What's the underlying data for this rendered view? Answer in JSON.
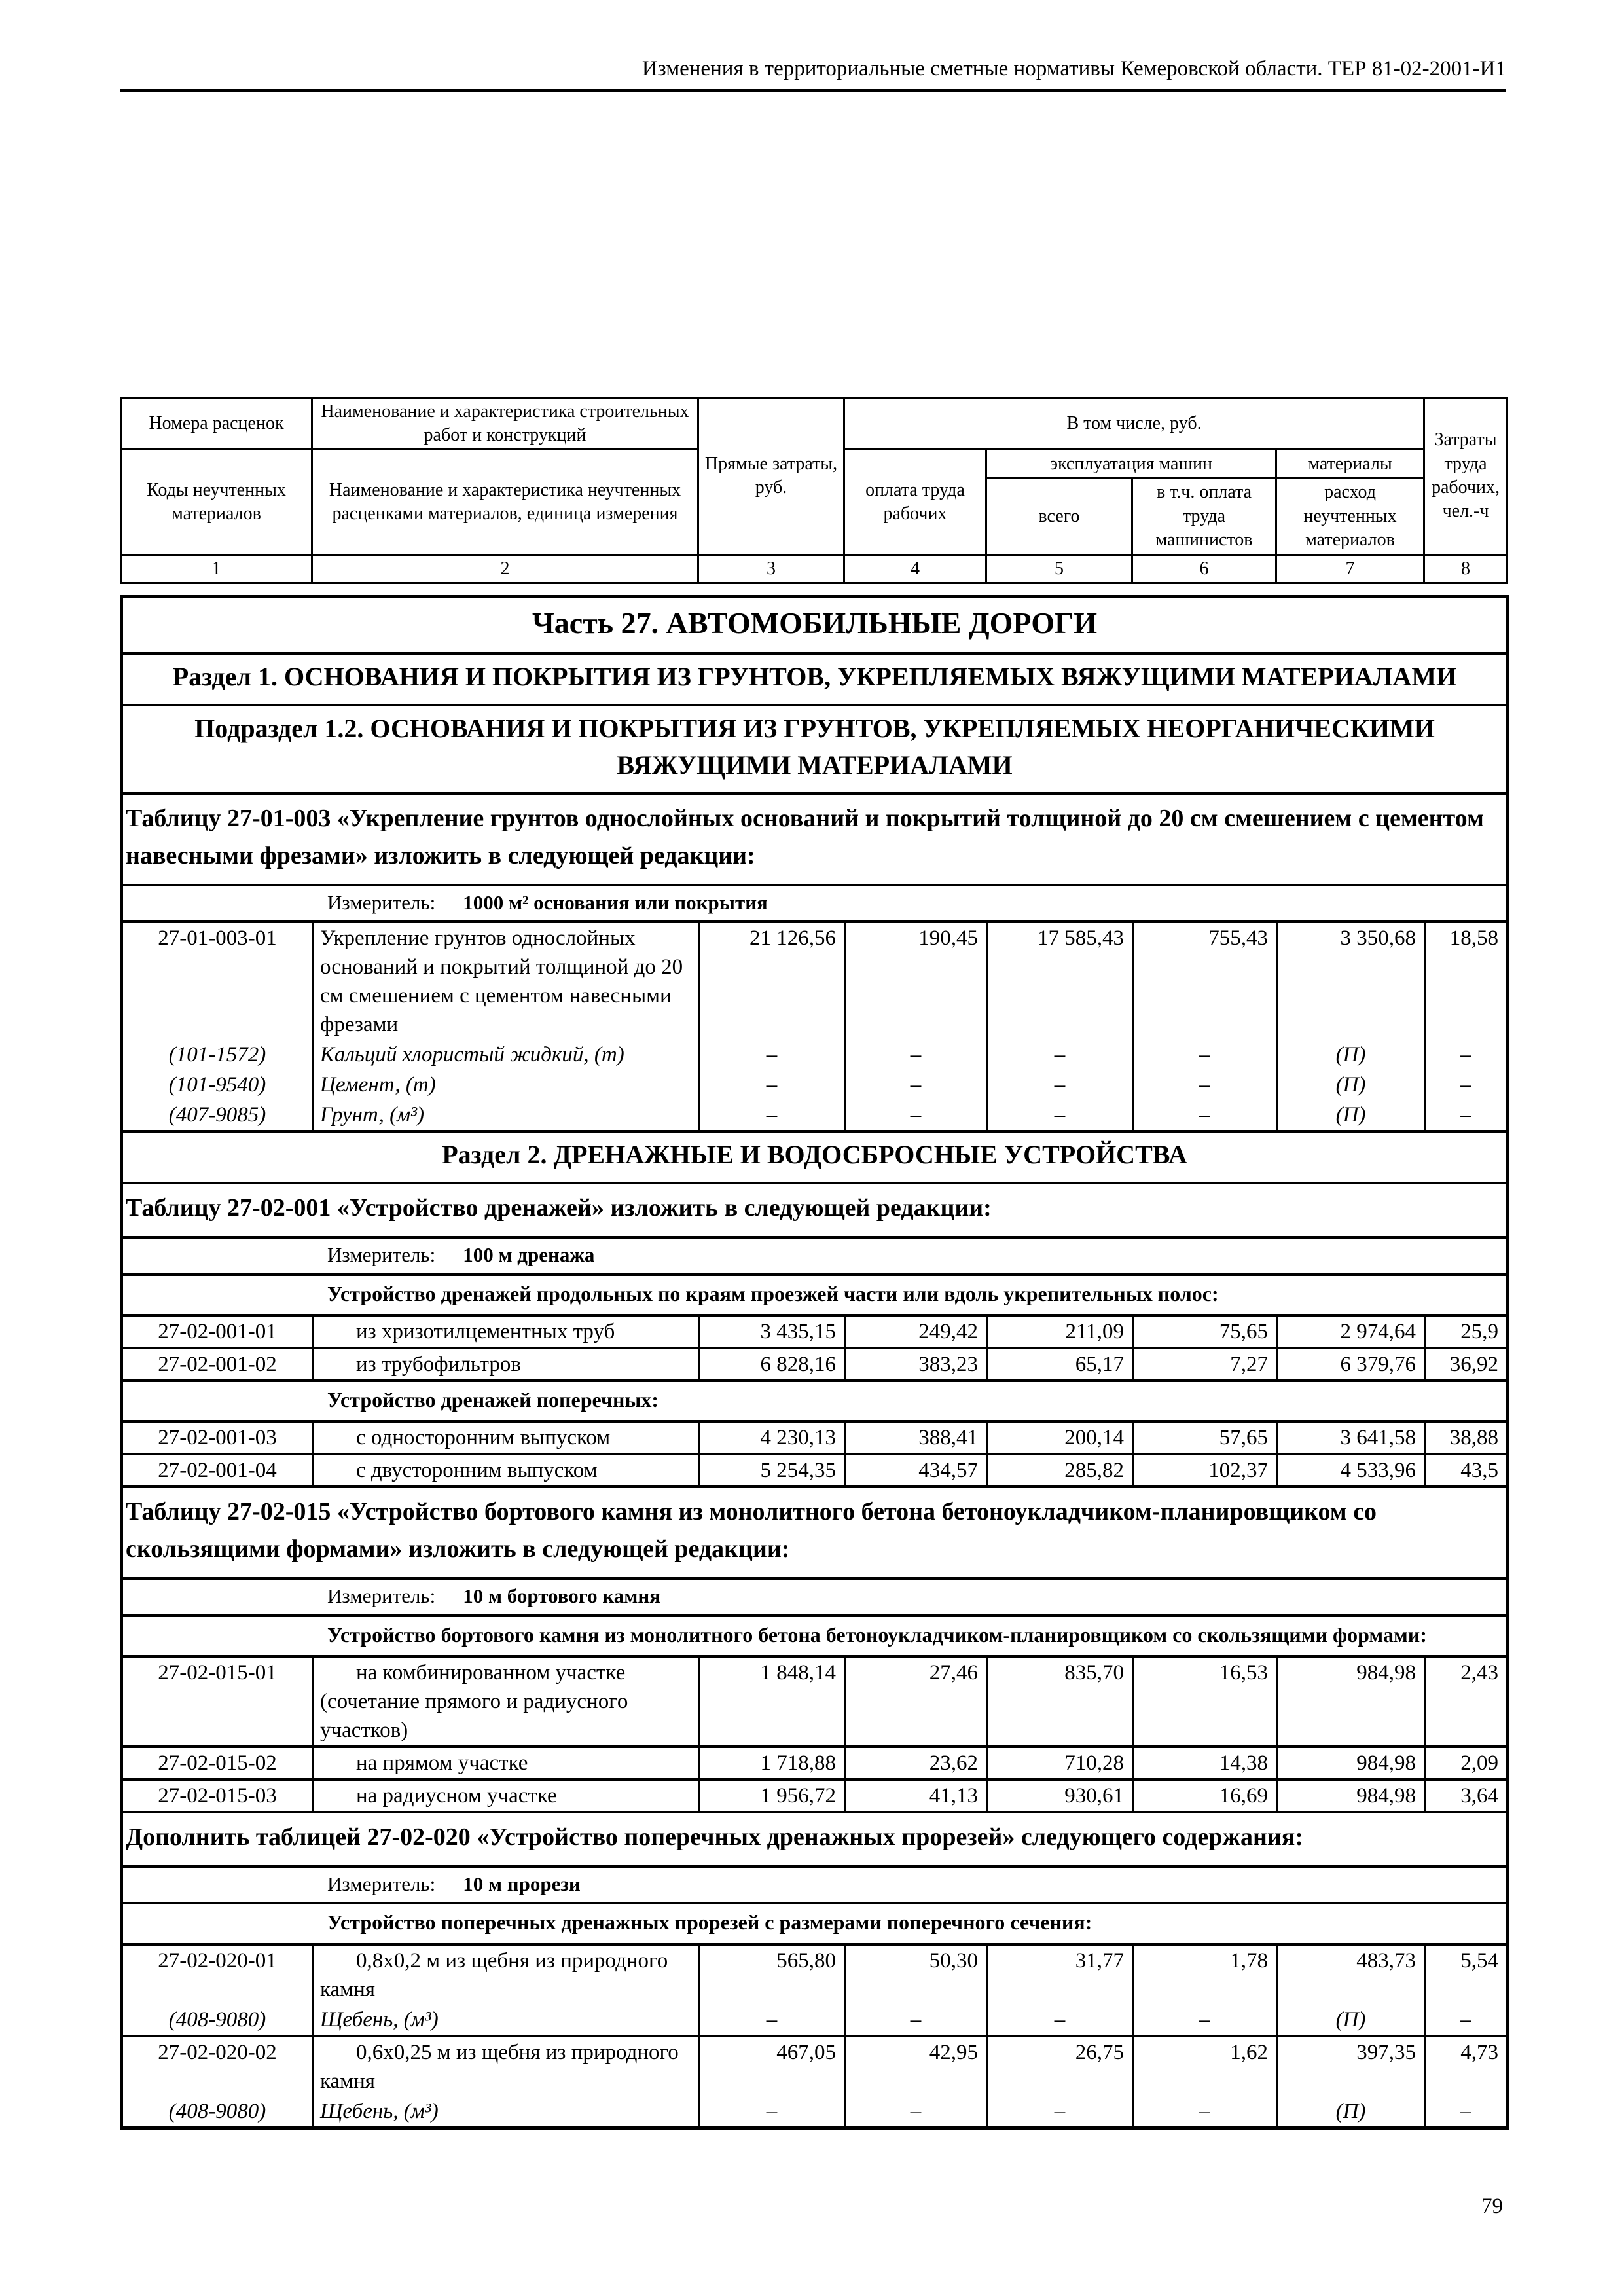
{
  "page": {
    "header_title": "Изменения в территориальные сметные нормативы Кемеровской области. ТЕР 81-02-2001-И1",
    "page_number": "79"
  },
  "table_header": {
    "col1_top": "Номера расценок",
    "col1_bottom": "Коды неучтенных материалов",
    "col2_top": "Наименование и характеристика строительных работ и конструкций",
    "col2_bottom": "Наименование и характеристика неучтенных расценками материалов, единица измерения",
    "col3": "Прямые затраты, руб.",
    "group_incl": "В том числе, руб.",
    "col4": "оплата труда рабочих",
    "group_machines": "эксплуатация машин",
    "col5": "всего",
    "col6": "в т.ч. оплата труда машинистов",
    "group_materials": "материалы",
    "col7": "расход неучтенных материалов",
    "col8": "Затраты труда рабочих, чел.-ч",
    "numbers": [
      "1",
      "2",
      "3",
      "4",
      "5",
      "6",
      "7",
      "8"
    ]
  },
  "rows": [
    {
      "type": "part",
      "text": "Часть 27. АВТОМОБИЛЬНЫЕ ДОРОГИ"
    },
    {
      "type": "section",
      "text": "Раздел 1. ОСНОВАНИЯ И ПОКРЫТИЯ ИЗ ГРУНТОВ, УКРЕПЛЯЕМЫХ ВЯЖУЩИМИ МАТЕРИАЛАМИ"
    },
    {
      "type": "section",
      "text": "Подраздел 1.2. ОСНОВАНИЯ И ПОКРЫТИЯ ИЗ ГРУНТОВ, УКРЕПЛЯЕМЫХ НЕОРГАНИЧЕСКИМИ ВЯЖУЩИМИ МАТЕРИАЛАМИ"
    },
    {
      "type": "note",
      "text": "Таблицу 27-01-003 «Укрепление грунтов однослойных оснований и покрытий толщиной до 20 см смешением с цементом навесными фрезами» изложить в следующей редакции:"
    },
    {
      "type": "measure",
      "label": "Измеритель:",
      "value": "1000 м² основания или покрытия"
    },
    {
      "type": "data",
      "code": "27-01-003-01",
      "desc": "Укрепление грунтов однослойных оснований и покрытий толщиной до 20 см смешением с цементом навесными фрезами",
      "v": [
        "21 126,56",
        "190,45",
        "17 585,43",
        "755,43",
        "3 350,68",
        "18,58"
      ]
    },
    {
      "type": "material",
      "code": "(101-1572)",
      "desc": "Кальций хлористый жидкий, (т)",
      "v": [
        "–",
        "–",
        "–",
        "–",
        "(П)",
        "–"
      ]
    },
    {
      "type": "material",
      "code": "(101-9540)",
      "desc": "Цемент, (т)",
      "v": [
        "–",
        "–",
        "–",
        "–",
        "(П)",
        "–"
      ]
    },
    {
      "type": "material",
      "code": "(407-9085)",
      "desc": "Грунт, (м³)",
      "v": [
        "–",
        "–",
        "–",
        "–",
        "(П)",
        "–"
      ]
    },
    {
      "type": "section",
      "text": "Раздел 2. ДРЕНАЖНЫЕ И ВОДОСБРОСНЫЕ УСТРОЙСТВА"
    },
    {
      "type": "note",
      "text": "Таблицу 27-02-001 «Устройство дренажей» изложить в следующей редакции:"
    },
    {
      "type": "measure",
      "label": "Измеритель:",
      "value": "100 м дренажа"
    },
    {
      "type": "group",
      "text": "Устройство дренажей продольных по краям проезжей части или вдоль укрепительных полос:"
    },
    {
      "type": "data",
      "code": "27-02-001-01",
      "desc": "из хризотилцементных труб",
      "v": [
        "3 435,15",
        "249,42",
        "211,09",
        "75,65",
        "2 974,64",
        "25,9"
      ]
    },
    {
      "type": "data",
      "code": "27-02-001-02",
      "desc": "из трубофильтров",
      "v": [
        "6 828,16",
        "383,23",
        "65,17",
        "7,27",
        "6 379,76",
        "36,92"
      ]
    },
    {
      "type": "group",
      "text": "Устройство дренажей поперечных:"
    },
    {
      "type": "data",
      "code": "27-02-001-03",
      "desc": "с односторонним выпуском",
      "v": [
        "4 230,13",
        "388,41",
        "200,14",
        "57,65",
        "3 641,58",
        "38,88"
      ]
    },
    {
      "type": "data",
      "code": "27-02-001-04",
      "desc": "с двусторонним выпуском",
      "v": [
        "5 254,35",
        "434,57",
        "285,82",
        "102,37",
        "4 533,96",
        "43,5"
      ]
    },
    {
      "type": "note",
      "text": "Таблицу 27-02-015 «Устройство бортового камня из монолитного бетона бетоноукладчиком-планировщиком со скользящими формами» изложить в следующей редакции:"
    },
    {
      "type": "measure",
      "label": "Измеритель:",
      "value": "10 м бортового камня"
    },
    {
      "type": "group",
      "text": "Устройство бортового камня из монолитного бетона бетоноукладчиком-планировщиком со скользящими формами:"
    },
    {
      "type": "data",
      "code": "27-02-015-01",
      "desc": "на комбинированном участке (сочетание прямого и радиусного участков)",
      "v": [
        "1 848,14",
        "27,46",
        "835,70",
        "16,53",
        "984,98",
        "2,43"
      ]
    },
    {
      "type": "data",
      "code": "27-02-015-02",
      "desc": "на прямом участке",
      "v": [
        "1 718,88",
        "23,62",
        "710,28",
        "14,38",
        "984,98",
        "2,09"
      ]
    },
    {
      "type": "data",
      "code": "27-02-015-03",
      "desc": "на радиусном участке",
      "v": [
        "1 956,72",
        "41,13",
        "930,61",
        "16,69",
        "984,98",
        "3,64"
      ]
    },
    {
      "type": "note",
      "text": "Дополнить таблицей 27-02-020 «Устройство поперечных дренажных прорезей» следующего содержания:"
    },
    {
      "type": "measure",
      "label": "Измеритель:",
      "value": "10 м прорези"
    },
    {
      "type": "group",
      "text": "Устройство поперечных дренажных прорезей с размерами поперечного сечения:"
    },
    {
      "type": "data",
      "code": "27-02-020-01",
      "desc": "0,8х0,2 м из щебня из природного камня",
      "v": [
        "565,80",
        "50,30",
        "31,77",
        "1,78",
        "483,73",
        "5,54"
      ]
    },
    {
      "type": "material",
      "code": "(408-9080)",
      "desc": "Щебень, (м³)",
      "v": [
        "–",
        "–",
        "–",
        "–",
        "(П)",
        "–"
      ]
    },
    {
      "type": "data",
      "code": "27-02-020-02",
      "desc": "0,6х0,25 м из щебня из природного камня",
      "v": [
        "467,05",
        "42,95",
        "26,75",
        "1,62",
        "397,35",
        "4,73"
      ]
    },
    {
      "type": "material",
      "code": "(408-9080)",
      "desc": "Щебень, (м³)",
      "v": [
        "–",
        "–",
        "–",
        "–",
        "(П)",
        "–"
      ]
    }
  ]
}
